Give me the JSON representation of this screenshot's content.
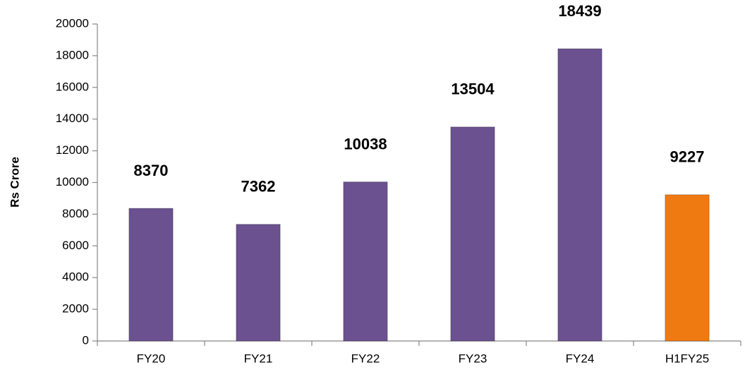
{
  "chart_data": {
    "type": "bar",
    "y_label": "Rs Crore",
    "categories": [
      "FY20",
      "FY21",
      "FY22",
      "FY23",
      "FY24",
      "H1FY25"
    ],
    "values": [
      8370,
      7362,
      10038,
      13504,
      18439,
      9227
    ],
    "colors": [
      "#6b5190",
      "#6b5190",
      "#6b5190",
      "#6b5190",
      "#6b5190",
      "#f07a12"
    ],
    "ylim": [
      0,
      20000
    ],
    "yticks": [
      0,
      2000,
      4000,
      6000,
      8000,
      10000,
      12000,
      14000,
      16000,
      18000,
      20000
    ],
    "grid": false
  }
}
